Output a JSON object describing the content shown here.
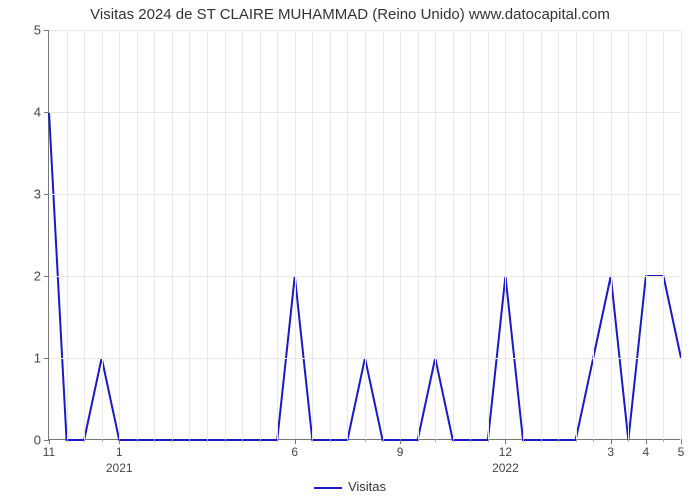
{
  "chart": {
    "type": "line",
    "title": "Visitas 2024 de ST CLAIRE MUHAMMAD (Reino Unido) www.datocapital.com",
    "title_fontsize": 15,
    "background_color": "#ffffff",
    "grid_color": "#e8e8e8",
    "axis_color": "#777777",
    "series": {
      "name": "Visitas",
      "color": "#1919c8",
      "line_width": 2,
      "values": [
        4,
        0,
        0,
        1,
        0,
        0,
        0,
        0,
        0,
        0,
        0,
        0,
        0,
        0,
        2,
        0,
        0,
        0,
        1,
        0,
        0,
        0,
        1,
        0,
        0,
        0,
        2,
        0,
        0,
        0,
        0,
        1,
        2,
        0,
        2,
        2,
        1
      ]
    },
    "y_axis": {
      "min": 0,
      "max": 5,
      "ticks": [
        0,
        1,
        2,
        3,
        4,
        5
      ],
      "label_fontsize": 13
    },
    "x_axis": {
      "n_points": 37,
      "major_ticks": [
        {
          "index": 0,
          "label": "11"
        },
        {
          "index": 4,
          "label": "1"
        },
        {
          "index": 14,
          "label": "6"
        },
        {
          "index": 20,
          "label": "9"
        },
        {
          "index": 26,
          "label": "12"
        },
        {
          "index": 32,
          "label": "3"
        },
        {
          "index": 34,
          "label": "4"
        },
        {
          "index": 36,
          "label": "5"
        }
      ],
      "minor_tick_indices": [
        1,
        2,
        3,
        5,
        6,
        7,
        8,
        9,
        10,
        11,
        12,
        13,
        15,
        16,
        17,
        18,
        19,
        21,
        22,
        23,
        24,
        25,
        27,
        28,
        29,
        30,
        31,
        33,
        35
      ],
      "year_labels": [
        {
          "index": 4,
          "label": "2021"
        },
        {
          "index": 26,
          "label": "2022"
        }
      ],
      "label_fontsize": 12
    },
    "legend": {
      "label": "Visitas",
      "fontsize": 13
    }
  }
}
